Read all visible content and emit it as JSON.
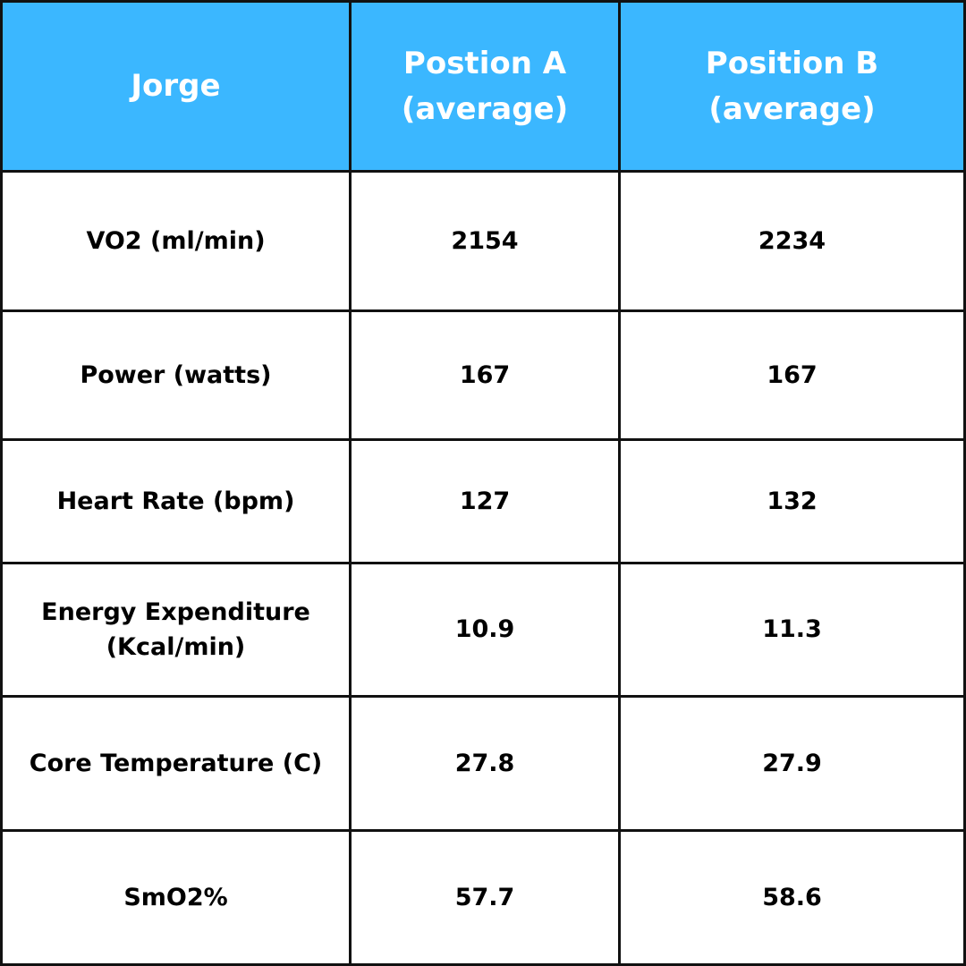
{
  "table": {
    "header": {
      "label": "Jorge",
      "col_a": "Postion A\n(average)",
      "col_b": "Position B\n(average)"
    },
    "rows": [
      {
        "metric": "VO2 (ml/min)",
        "a": "2154",
        "b": "2234"
      },
      {
        "metric": "Power (watts)",
        "a": "167",
        "b": "167"
      },
      {
        "metric": "Heart Rate (bpm)",
        "a": "127",
        "b": "132"
      },
      {
        "metric": "Energy Expenditure\n(Kcal/min)",
        "a": "10.9",
        "b": "11.3"
      },
      {
        "metric": "Core Temperature (C)",
        "a": "27.8",
        "b": "27.9"
      },
      {
        "metric": "SmO2%",
        "a": "57.7",
        "b": "58.6"
      }
    ]
  },
  "colors": {
    "header_bg": "#3bb7ff",
    "header_text": "#ffffff",
    "border": "#111111",
    "body_text": "#000000"
  }
}
